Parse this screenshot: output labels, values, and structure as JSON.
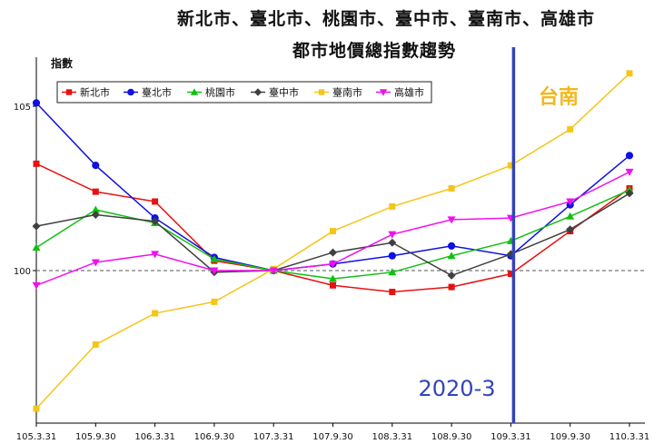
{
  "chart_data": {
    "type": "line",
    "title": "新北市、臺北市、桃園市、臺中市、臺南市、高雄市",
    "subtitle": "都市地價總指數趨勢",
    "ylabel": "指數",
    "xlabel": "",
    "x": [
      "105.3.31",
      "105.9.30",
      "106.3.31",
      "106.9.30",
      "107.3.31",
      "107.9.30",
      "108.3.31",
      "108.9.30",
      "109.3.31",
      "109.9.30",
      "110.3.31"
    ],
    "yticks": [
      100,
      105
    ],
    "ylim": [
      95.4,
      106.3
    ],
    "reference_line": 100,
    "grid": false,
    "legend_position": "top-left",
    "series": [
      {
        "name": "新北市",
        "color": "#e81010",
        "marker": "square",
        "values": [
          103.25,
          102.4,
          102.1,
          100.3,
          100.0,
          99.55,
          99.35,
          99.5,
          99.9,
          101.2,
          102.5
        ]
      },
      {
        "name": "臺北市",
        "color": "#1010e0",
        "marker": "circle",
        "values": [
          105.1,
          103.2,
          101.6,
          100.4,
          100.0,
          100.2,
          100.45,
          100.75,
          100.45,
          102.0,
          103.5
        ]
      },
      {
        "name": "桃園市",
        "color": "#10c010",
        "marker": "triangle-up",
        "values": [
          100.7,
          101.85,
          101.45,
          100.35,
          100.0,
          99.75,
          99.95,
          100.45,
          100.9,
          101.65,
          102.45
        ]
      },
      {
        "name": "臺中市",
        "color": "#404040",
        "marker": "diamond",
        "values": [
          101.35,
          101.7,
          101.5,
          99.95,
          100.0,
          100.55,
          100.85,
          99.85,
          100.5,
          101.25,
          102.35
        ]
      },
      {
        "name": "臺南市",
        "color": "#f5c518",
        "marker": "square",
        "values": [
          95.8,
          97.75,
          98.7,
          99.05,
          100.05,
          101.2,
          101.95,
          102.5,
          103.2,
          104.3,
          106.0
        ]
      },
      {
        "name": "高雄市",
        "color": "#f010f0",
        "marker": "triangle-down",
        "values": [
          99.55,
          100.25,
          100.5,
          100.0,
          100.0,
          100.2,
          101.1,
          101.55,
          101.6,
          102.1,
          103.0
        ]
      }
    ],
    "annotations": [
      {
        "text": "台南",
        "color": "#f2b820"
      },
      {
        "text": "2020-3",
        "color": "#3344bb",
        "vertical_line_at": "109.3.31"
      }
    ]
  }
}
